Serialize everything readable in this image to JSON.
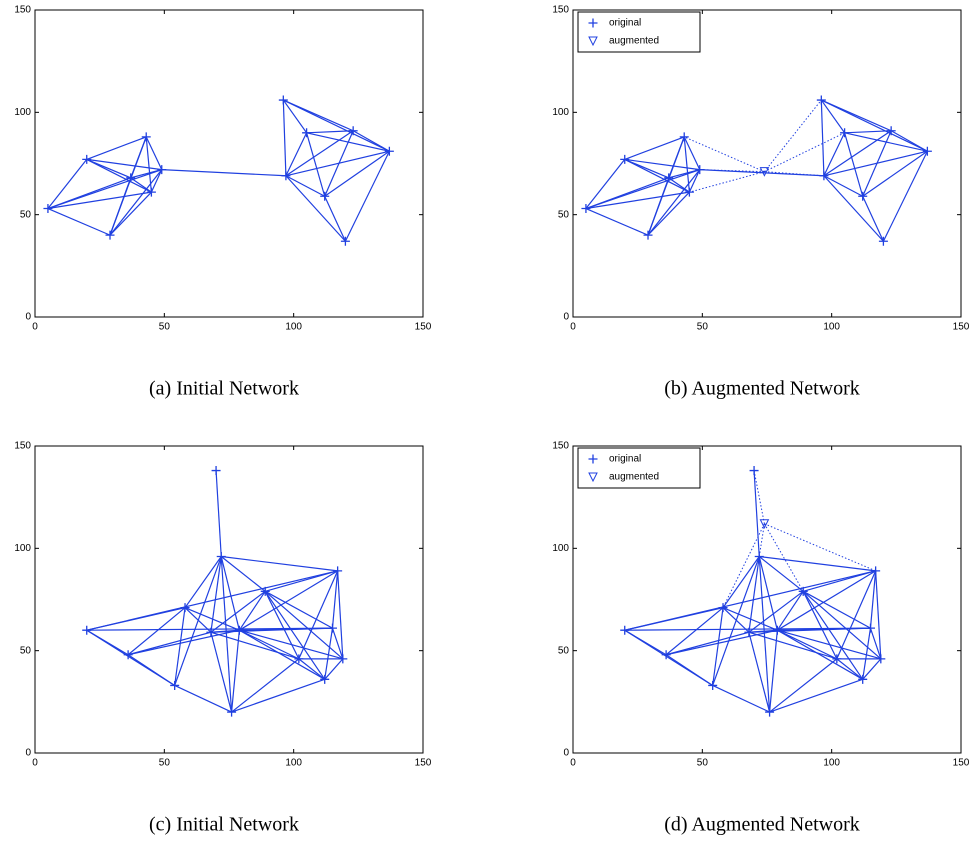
{
  "chart_data": [
    {
      "type": "network",
      "caption": "(a) Initial Network",
      "color": "#2040e0",
      "xlim": [
        0,
        150
      ],
      "ylim": [
        0,
        150
      ],
      "xticks": [
        0,
        50,
        100,
        150
      ],
      "yticks": [
        0,
        50,
        100,
        150
      ],
      "legend": false,
      "series": [
        {
          "x": [
            5,
            20,
            43,
            29,
            37,
            45,
            49,
            97,
            96,
            105,
            123,
            137,
            112,
            120
          ],
          "y": [
            53,
            77,
            88,
            40,
            68,
            61,
            72,
            69,
            106,
            90,
            91,
            81,
            59,
            37
          ]
        }
      ],
      "edges": [
        [
          0,
          1
        ],
        [
          0,
          3
        ],
        [
          0,
          4
        ],
        [
          0,
          5
        ],
        [
          0,
          6
        ],
        [
          1,
          2
        ],
        [
          1,
          4
        ],
        [
          1,
          5
        ],
        [
          1,
          6
        ],
        [
          2,
          3
        ],
        [
          2,
          4
        ],
        [
          2,
          5
        ],
        [
          2,
          6
        ],
        [
          3,
          4
        ],
        [
          3,
          5
        ],
        [
          3,
          6
        ],
        [
          4,
          5
        ],
        [
          4,
          6
        ],
        [
          5,
          6
        ],
        [
          6,
          7
        ],
        [
          7,
          8
        ],
        [
          7,
          9
        ],
        [
          7,
          10
        ],
        [
          7,
          11
        ],
        [
          7,
          12
        ],
        [
          8,
          9
        ],
        [
          8,
          10
        ],
        [
          8,
          11
        ],
        [
          9,
          10
        ],
        [
          9,
          11
        ],
        [
          9,
          12
        ],
        [
          10,
          11
        ],
        [
          10,
          12
        ],
        [
          11,
          12
        ],
        [
          11,
          13
        ],
        [
          12,
          13
        ],
        [
          7,
          13
        ]
      ]
    },
    {
      "type": "network",
      "caption": "(b) Augmented Network",
      "color": "#2040e0",
      "xlim": [
        0,
        150
      ],
      "ylim": [
        0,
        150
      ],
      "xticks": [
        0,
        50,
        100,
        150
      ],
      "yticks": [
        0,
        50,
        100,
        150
      ],
      "legend": true,
      "series": [
        {
          "name": "original",
          "x": [
            5,
            20,
            43,
            29,
            37,
            45,
            49,
            97,
            96,
            105,
            123,
            137,
            112,
            120
          ],
          "y": [
            53,
            77,
            88,
            40,
            68,
            61,
            72,
            69,
            106,
            90,
            91,
            81,
            59,
            37
          ]
        },
        {
          "name": "augmented",
          "x": [
            74
          ],
          "y": [
            71
          ]
        }
      ],
      "edges": [
        [
          0,
          1
        ],
        [
          0,
          3
        ],
        [
          0,
          4
        ],
        [
          0,
          5
        ],
        [
          0,
          6
        ],
        [
          1,
          2
        ],
        [
          1,
          4
        ],
        [
          1,
          5
        ],
        [
          1,
          6
        ],
        [
          2,
          3
        ],
        [
          2,
          4
        ],
        [
          2,
          5
        ],
        [
          2,
          6
        ],
        [
          3,
          4
        ],
        [
          3,
          5
        ],
        [
          3,
          6
        ],
        [
          4,
          5
        ],
        [
          4,
          6
        ],
        [
          5,
          6
        ],
        [
          6,
          7
        ],
        [
          7,
          8
        ],
        [
          7,
          9
        ],
        [
          7,
          10
        ],
        [
          7,
          11
        ],
        [
          7,
          12
        ],
        [
          8,
          9
        ],
        [
          8,
          10
        ],
        [
          8,
          11
        ],
        [
          9,
          10
        ],
        [
          9,
          11
        ],
        [
          9,
          12
        ],
        [
          10,
          11
        ],
        [
          10,
          12
        ],
        [
          11,
          12
        ],
        [
          11,
          13
        ],
        [
          12,
          13
        ],
        [
          7,
          13
        ]
      ],
      "augmented_edges": [
        2,
        5,
        6,
        7,
        8,
        9
      ]
    },
    {
      "type": "network",
      "caption": "(c) Initial Network",
      "color": "#2040e0",
      "xlim": [
        0,
        150
      ],
      "ylim": [
        0,
        150
      ],
      "xticks": [
        0,
        50,
        100,
        150
      ],
      "yticks": [
        0,
        50,
        100,
        150
      ],
      "legend": false,
      "series": [
        {
          "x": [
            70,
            72,
            20,
            36,
            58,
            68,
            79,
            54,
            76,
            89,
            117,
            115,
            119,
            102,
            112
          ],
          "y": [
            138,
            96,
            60,
            48,
            71,
            59,
            60,
            33,
            20,
            79,
            89,
            61,
            46,
            46,
            36
          ]
        }
      ],
      "edges": [
        [
          0,
          1
        ],
        [
          1,
          4
        ],
        [
          1,
          5
        ],
        [
          1,
          6
        ],
        [
          1,
          7
        ],
        [
          1,
          8
        ],
        [
          1,
          9
        ],
        [
          1,
          10
        ],
        [
          2,
          3
        ],
        [
          2,
          4
        ],
        [
          2,
          11
        ],
        [
          2,
          10
        ],
        [
          2,
          7
        ],
        [
          3,
          4
        ],
        [
          3,
          5
        ],
        [
          3,
          6
        ],
        [
          3,
          7
        ],
        [
          4,
          5
        ],
        [
          4,
          6
        ],
        [
          4,
          7
        ],
        [
          5,
          6
        ],
        [
          5,
          8
        ],
        [
          5,
          9
        ],
        [
          5,
          13
        ],
        [
          5,
          11
        ],
        [
          6,
          8
        ],
        [
          6,
          9
        ],
        [
          6,
          10
        ],
        [
          6,
          11
        ],
        [
          6,
          12
        ],
        [
          6,
          13
        ],
        [
          6,
          14
        ],
        [
          7,
          8
        ],
        [
          8,
          13
        ],
        [
          8,
          14
        ],
        [
          9,
          10
        ],
        [
          9,
          11
        ],
        [
          9,
          12
        ],
        [
          9,
          13
        ],
        [
          9,
          14
        ],
        [
          10,
          11
        ],
        [
          10,
          12
        ],
        [
          10,
          13
        ],
        [
          11,
          12
        ],
        [
          11,
          14
        ],
        [
          12,
          13
        ],
        [
          12,
          14
        ],
        [
          13,
          14
        ]
      ]
    },
    {
      "type": "network",
      "caption": "(d) Augmented Network",
      "color": "#2040e0",
      "xlim": [
        0,
        150
      ],
      "ylim": [
        0,
        150
      ],
      "xticks": [
        0,
        50,
        100,
        150
      ],
      "yticks": [
        0,
        50,
        100,
        150
      ],
      "legend": true,
      "series": [
        {
          "name": "original",
          "x": [
            70,
            72,
            20,
            36,
            58,
            68,
            79,
            54,
            76,
            89,
            117,
            115,
            119,
            102,
            112
          ],
          "y": [
            138,
            96,
            60,
            48,
            71,
            59,
            60,
            33,
            20,
            79,
            89,
            61,
            46,
            46,
            36
          ]
        },
        {
          "name": "augmented",
          "x": [
            74
          ],
          "y": [
            112
          ]
        }
      ],
      "edges": [
        [
          0,
          1
        ],
        [
          1,
          4
        ],
        [
          1,
          5
        ],
        [
          1,
          6
        ],
        [
          1,
          7
        ],
        [
          1,
          8
        ],
        [
          1,
          9
        ],
        [
          1,
          10
        ],
        [
          2,
          3
        ],
        [
          2,
          4
        ],
        [
          2,
          11
        ],
        [
          2,
          10
        ],
        [
          2,
          7
        ],
        [
          3,
          4
        ],
        [
          3,
          5
        ],
        [
          3,
          6
        ],
        [
          3,
          7
        ],
        [
          4,
          5
        ],
        [
          4,
          6
        ],
        [
          4,
          7
        ],
        [
          5,
          6
        ],
        [
          5,
          8
        ],
        [
          5,
          9
        ],
        [
          5,
          13
        ],
        [
          5,
          11
        ],
        [
          6,
          8
        ],
        [
          6,
          9
        ],
        [
          6,
          10
        ],
        [
          6,
          11
        ],
        [
          6,
          12
        ],
        [
          6,
          13
        ],
        [
          6,
          14
        ],
        [
          7,
          8
        ],
        [
          8,
          13
        ],
        [
          8,
          14
        ],
        [
          9,
          10
        ],
        [
          9,
          11
        ],
        [
          9,
          12
        ],
        [
          9,
          13
        ],
        [
          9,
          14
        ],
        [
          10,
          11
        ],
        [
          10,
          12
        ],
        [
          10,
          13
        ],
        [
          11,
          12
        ],
        [
          11,
          14
        ],
        [
          12,
          13
        ],
        [
          12,
          14
        ],
        [
          13,
          14
        ]
      ],
      "augmented_edges": [
        0,
        1,
        4,
        9,
        10
      ]
    }
  ]
}
